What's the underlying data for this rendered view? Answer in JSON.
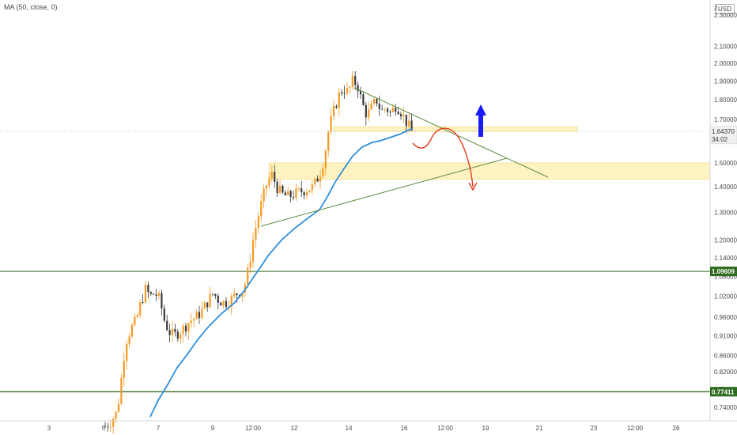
{
  "legend": {
    "indicator": "MA (50, close, 0)"
  },
  "currency": "USD",
  "price_scale": {
    "top_label": "2.",
    "ticks": [
      "2.30000",
      "2.10000",
      "2.00000",
      "1.90000",
      "1.80000",
      "1.70000",
      "1.50000",
      "1.40000",
      "1.30000",
      "1.20000",
      "1.14000",
      "1.08000",
      "1.02000",
      "0.96000",
      "0.91000",
      "0.86000",
      "0.82000",
      "0.78000",
      "0.74000"
    ]
  },
  "time_scale": {
    "ticks": [
      "3",
      "5",
      "7",
      "9",
      "12:00",
      "12",
      "14",
      "16",
      "12:00",
      "19",
      "21",
      "23",
      "12:00",
      "26"
    ]
  },
  "last_price": {
    "value": "1.64370",
    "countdown": "34:02"
  },
  "levels": [
    {
      "value": "1.09609",
      "color": "#2e6b1f"
    },
    {
      "value": "0.77411",
      "color": "#2e6b1f"
    }
  ],
  "colors": {
    "up": "#f59a23",
    "down": "#3a3a3a",
    "ma": "#2f8fdc",
    "trendline": "#5a8a3c",
    "zone": "#fff3c2",
    "projection": "#e63a1f",
    "arrow_up": "#1a1aff"
  },
  "chart_data": {
    "type": "candlestick",
    "title": "",
    "series": [
      {
        "name": "MA (50, close, 0)",
        "type": "line"
      }
    ],
    "y_axis": {
      "scale": "log",
      "ylim": [
        0.72,
        2.55
      ]
    },
    "x_axis": {
      "ticks": [
        "3",
        "5",
        "7",
        "9",
        "12:00",
        "12",
        "14",
        "16",
        "12:00",
        "19",
        "21",
        "23",
        "12:00",
        "26"
      ]
    },
    "closes": [
      0.7,
      0.72,
      0.78,
      0.88,
      0.94,
      1.0,
      1.03,
      0.98,
      0.95,
      0.91,
      0.93,
      0.92,
      0.95,
      0.97,
      0.99,
      1.03,
      1.05,
      1.02,
      1.0,
      1.03,
      1.02,
      1.05,
      1.1,
      1.2,
      1.3,
      1.4,
      1.45,
      1.42,
      1.38,
      1.4,
      1.43,
      1.38,
      1.4,
      1.5,
      1.72,
      1.85,
      1.9,
      1.82,
      1.76,
      1.8,
      1.77,
      1.78,
      1.72,
      1.75,
      1.72,
      1.68,
      1.64
    ],
    "ma_values": [
      0.69,
      0.72,
      0.75,
      0.79,
      0.83,
      0.86,
      0.89,
      0.92,
      0.95,
      0.98,
      1.0,
      1.03,
      1.06,
      1.1,
      1.14,
      1.19,
      1.25,
      1.3,
      1.34,
      1.39,
      1.43,
      1.48,
      1.52,
      1.56,
      1.6,
      1.63,
      1.64
    ],
    "horizontal_levels": [
      1.09609,
      0.77411
    ],
    "zones": [
      [
        1.642,
        1.665
      ],
      [
        1.43,
        1.5
      ]
    ],
    "annotations": [
      "descending triangle resistance line",
      "ascending support line",
      "projection up-and-down",
      "blue up arrow"
    ]
  }
}
